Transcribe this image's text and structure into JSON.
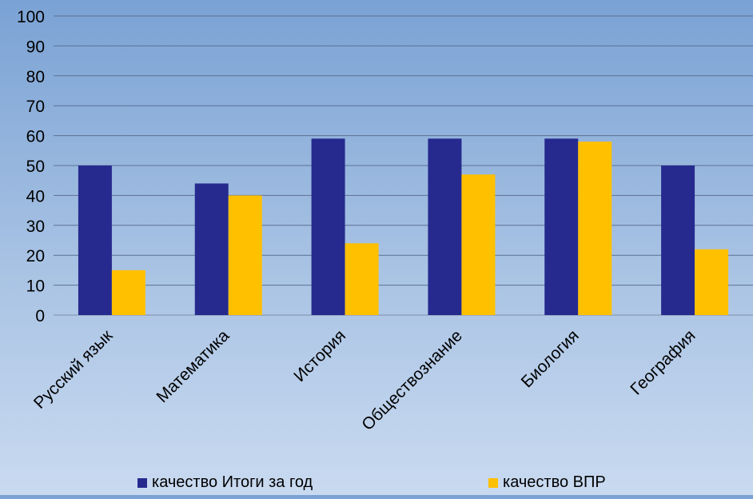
{
  "chart_data": {
    "type": "bar",
    "categories": [
      "Русский язык",
      "Математика",
      "История",
      "Обществознание",
      "Биология",
      "География"
    ],
    "series": [
      {
        "name": "качество Итоги за год",
        "values": [
          50,
          44,
          59,
          59,
          59,
          50
        ],
        "color": "#262a8e"
      },
      {
        "name": "качество ВПР",
        "values": [
          15,
          40,
          24,
          47,
          58,
          22
        ],
        "color": "#ffc000"
      }
    ],
    "ylim": [
      0,
      100
    ],
    "yticks": [
      0,
      10,
      20,
      30,
      40,
      50,
      60,
      70,
      80,
      90,
      100
    ],
    "grid": true,
    "legend_position": "bottom"
  }
}
